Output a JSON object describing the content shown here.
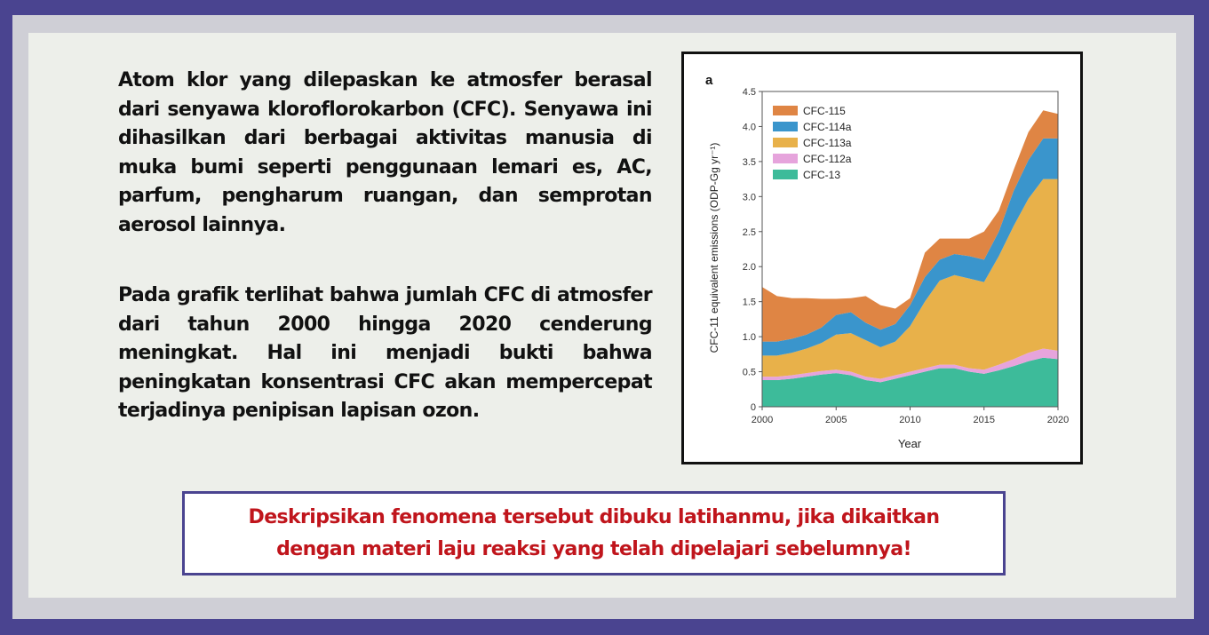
{
  "paragraphs": {
    "p1": "Atom klor yang dilepaskan ke atmosfer berasal dari senyawa kloroflorokarbon (CFC). Senyawa ini dihasilkan dari berbagai aktivitas manusia di muka bumi seperti penggunaan lemari es, AC, parfum, pengharum ruangan, dan semprotan aerosol lainnya.",
    "p2": "Pada grafik terlihat bahwa jumlah CFC di atmosfer  dari tahun 2000 hingga 2020 cenderung meningkat. Hal ini menjadi bukti bahwa peningkatan konsentrasi CFC akan mempercepat terjadinya penipisan lapisan ozon."
  },
  "question": {
    "line1": "Deskripsikan fenomena tersebut dibuku latihanmu, jika dikaitkan",
    "line2": "dengan materi laju reaksi yang telah dipelajari sebelumnya!"
  },
  "chart_data": {
    "type": "area",
    "panel_label": "a",
    "xlabel": "Year",
    "ylabel": "CFC-11 equivalent emissions (ODP-Gg yr⁻¹)",
    "xlim": [
      2000,
      2020
    ],
    "ylim": [
      0,
      4.5
    ],
    "x_ticks": [
      "2000",
      "2005",
      "2010",
      "2015",
      "2020"
    ],
    "y_ticks": [
      "0",
      "0.5",
      "1.0",
      "1.5",
      "2.0",
      "2.5",
      "3.0",
      "3.5",
      "4.0",
      "4.5"
    ],
    "legend_position": "top-left",
    "stacked": true,
    "x": [
      2000,
      2001,
      2002,
      2003,
      2004,
      2005,
      2006,
      2007,
      2008,
      2009,
      2010,
      2011,
      2012,
      2013,
      2014,
      2015,
      2016,
      2017,
      2018,
      2019,
      2020
    ],
    "series": [
      {
        "name": "CFC-13",
        "color": "#3dbb9a",
        "values": [
          0.38,
          0.38,
          0.4,
          0.43,
          0.46,
          0.48,
          0.45,
          0.38,
          0.35,
          0.4,
          0.45,
          0.5,
          0.55,
          0.55,
          0.5,
          0.47,
          0.52,
          0.58,
          0.65,
          0.7,
          0.68
        ]
      },
      {
        "name": "CFC-112a",
        "color": "#e6a4dc",
        "values": [
          0.05,
          0.05,
          0.05,
          0.05,
          0.05,
          0.05,
          0.05,
          0.05,
          0.05,
          0.05,
          0.05,
          0.05,
          0.05,
          0.05,
          0.05,
          0.06,
          0.08,
          0.1,
          0.12,
          0.13,
          0.12
        ]
      },
      {
        "name": "CFC-113a",
        "color": "#e8b14a",
        "values": [
          0.3,
          0.3,
          0.32,
          0.35,
          0.4,
          0.5,
          0.55,
          0.52,
          0.45,
          0.48,
          0.65,
          0.95,
          1.2,
          1.28,
          1.28,
          1.25,
          1.55,
          1.9,
          2.2,
          2.42,
          2.45
        ]
      },
      {
        "name": "CFC-114a",
        "color": "#3a95cc",
        "values": [
          0.2,
          0.2,
          0.2,
          0.2,
          0.22,
          0.28,
          0.3,
          0.25,
          0.25,
          0.25,
          0.3,
          0.35,
          0.3,
          0.3,
          0.32,
          0.32,
          0.35,
          0.5,
          0.55,
          0.58,
          0.58
        ]
      },
      {
        "name": "CFC-115",
        "color": "#df8544",
        "values": [
          0.78,
          0.65,
          0.58,
          0.52,
          0.41,
          0.23,
          0.2,
          0.38,
          0.35,
          0.22,
          0.1,
          0.35,
          0.3,
          0.22,
          0.25,
          0.4,
          0.3,
          0.3,
          0.4,
          0.4,
          0.35
        ]
      }
    ]
  }
}
